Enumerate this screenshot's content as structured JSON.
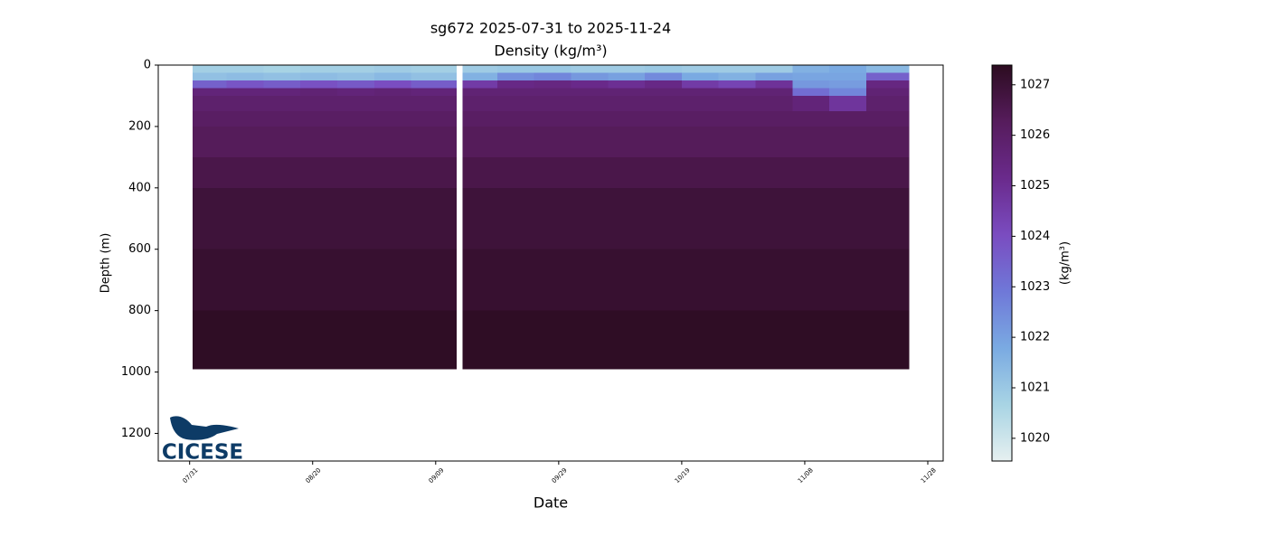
{
  "chart_data": {
    "type": "section",
    "title": "sg672 2025-07-31 to 2025-11-24",
    "subtitle": "Density (kg/m³)",
    "xlabel": "Date",
    "ylabel": "Depth (m)",
    "colorbar_label": "(kg/m³)",
    "logo_text": "CICESE",
    "xlim": [
      -5.1,
      122.5
    ],
    "xticks": [
      {
        "value": 0,
        "label": "07/31"
      },
      {
        "value": 20,
        "label": "08/20"
      },
      {
        "value": 40,
        "label": "09/09"
      },
      {
        "value": 60,
        "label": "09/29"
      },
      {
        "value": 80,
        "label": "10/19"
      },
      {
        "value": 100,
        "label": "11/08"
      },
      {
        "value": 120,
        "label": "11/28"
      }
    ],
    "ylim": [
      1290,
      0
    ],
    "yticks": [
      0,
      200,
      400,
      600,
      800,
      1000,
      1200
    ],
    "clim": [
      1019.55,
      1027.39
    ],
    "cticks": [
      1020,
      1021,
      1022,
      1023,
      1024,
      1025,
      1026,
      1027
    ],
    "colormap": [
      "#e6f0f0",
      "#a8d4e4",
      "#7aaae2",
      "#6f78d8",
      "#7a4cc0",
      "#6a2a8c",
      "#561c5c",
      "#2c0c20"
    ],
    "x_edges": [
      0.5,
      6,
      12,
      18,
      24,
      30,
      36,
      43.3,
      44.4,
      50,
      56,
      62,
      68,
      74,
      80,
      86,
      92,
      98,
      104,
      110,
      116.9
    ],
    "depth_edges": [
      0,
      25,
      50,
      75,
      100,
      150,
      200,
      300,
      400,
      600,
      800,
      990
    ],
    "values": [
      [
        1020.8,
        1021.2,
        1023.5,
        1025.6,
        1025.9,
        1026.1,
        1026.3,
        1026.6,
        1026.9,
        1027.1,
        1027.3
      ],
      [
        1020.8,
        1021.3,
        1023.8,
        1025.6,
        1025.9,
        1026.1,
        1026.3,
        1026.6,
        1026.9,
        1027.1,
        1027.3
      ],
      [
        1020.7,
        1021.2,
        1023.6,
        1025.6,
        1025.9,
        1026.1,
        1026.3,
        1026.6,
        1026.9,
        1027.1,
        1027.3
      ],
      [
        1020.8,
        1021.3,
        1023.9,
        1025.7,
        1025.9,
        1026.1,
        1026.3,
        1026.6,
        1026.9,
        1027.1,
        1027.3
      ],
      [
        1020.8,
        1021.2,
        1023.7,
        1025.6,
        1025.9,
        1026.1,
        1026.3,
        1026.6,
        1026.9,
        1027.1,
        1027.3
      ],
      [
        1020.9,
        1021.4,
        1024.0,
        1025.7,
        1025.9,
        1026.1,
        1026.3,
        1026.6,
        1026.9,
        1027.1,
        1027.3
      ],
      [
        1020.8,
        1021.2,
        1023.6,
        1025.6,
        1025.9,
        1026.1,
        1026.3,
        1026.6,
        1026.9,
        1027.1,
        1027.3
      ],
      null,
      [
        1020.9,
        1021.6,
        1024.6,
        1025.7,
        1025.9,
        1026.1,
        1026.3,
        1026.6,
        1026.9,
        1027.1,
        1027.3
      ],
      [
        1021.0,
        1022.4,
        1025.3,
        1025.7,
        1025.9,
        1026.1,
        1026.3,
        1026.6,
        1026.9,
        1027.1,
        1027.3
      ],
      [
        1021.0,
        1022.6,
        1025.4,
        1025.7,
        1025.9,
        1026.1,
        1026.3,
        1026.6,
        1026.9,
        1027.1,
        1027.3
      ],
      [
        1020.9,
        1022.2,
        1025.2,
        1025.7,
        1025.9,
        1026.1,
        1026.3,
        1026.6,
        1026.9,
        1027.1,
        1027.3
      ],
      [
        1020.9,
        1022.0,
        1025.0,
        1025.7,
        1025.9,
        1026.1,
        1026.3,
        1026.6,
        1026.9,
        1027.1,
        1027.3
      ],
      [
        1021.0,
        1022.5,
        1025.3,
        1025.7,
        1025.9,
        1026.1,
        1026.3,
        1026.6,
        1026.9,
        1027.1,
        1027.3
      ],
      [
        1020.9,
        1021.8,
        1024.6,
        1025.7,
        1025.9,
        1026.1,
        1026.3,
        1026.6,
        1026.9,
        1027.1,
        1027.3
      ],
      [
        1020.9,
        1021.6,
        1024.3,
        1025.7,
        1025.9,
        1026.1,
        1026.3,
        1026.6,
        1026.9,
        1027.1,
        1027.3
      ],
      [
        1020.9,
        1022.0,
        1024.9,
        1025.7,
        1025.9,
        1026.1,
        1026.3,
        1026.6,
        1026.9,
        1027.1,
        1027.3
      ],
      [
        1021.6,
        1021.9,
        1022.2,
        1023.2,
        1025.6,
        1026.1,
        1026.3,
        1026.6,
        1026.9,
        1027.1,
        1027.3
      ],
      [
        1021.8,
        1021.9,
        1022.1,
        1022.6,
        1024.8,
        1026.1,
        1026.3,
        1026.6,
        1026.9,
        1027.1,
        1027.3
      ],
      [
        1021.4,
        1023.5,
        1025.4,
        1025.7,
        1025.9,
        1026.1,
        1026.3,
        1026.6,
        1026.9,
        1027.1,
        1027.3
      ]
    ]
  }
}
